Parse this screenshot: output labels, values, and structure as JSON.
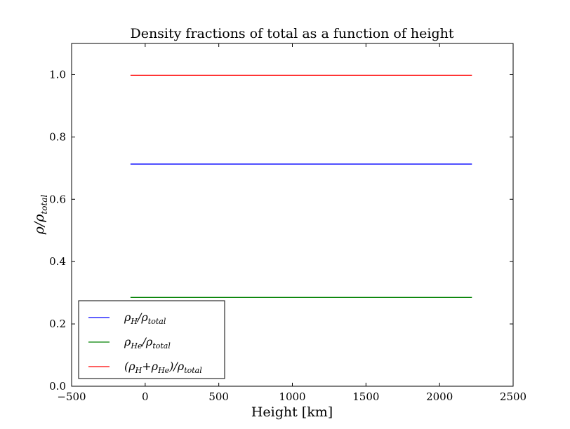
{
  "chart_data": {
    "type": "line",
    "title": "Density fractions of total as a function of height",
    "xlabel": "Height [km]",
    "ylabel": "ρ/ρ_total",
    "xlim": [
      -500,
      2500
    ],
    "ylim": [
      0.0,
      1.1
    ],
    "xticks": [
      -500,
      0,
      500,
      1000,
      1500,
      2000,
      2500
    ],
    "xtick_labels": [
      "−500",
      "0",
      "500",
      "1000",
      "1500",
      "2000",
      "2500"
    ],
    "yticks": [
      0.0,
      0.2,
      0.4,
      0.6,
      0.8,
      1.0
    ],
    "ytick_labels": [
      "0.0",
      "0.2",
      "0.4",
      "0.6",
      "0.8",
      "1.0"
    ],
    "grid": false,
    "legend_position": "lower-left",
    "x": [
      -100,
      2220
    ],
    "series": [
      {
        "name": "ρ_H/ρ_total",
        "color": "#0000ff",
        "values": [
          0.713,
          0.713
        ]
      },
      {
        "name": "ρ_He/ρ_total",
        "color": "#008000",
        "values": [
          0.285,
          0.285
        ]
      },
      {
        "name": "(ρ_H+ρ_He)/ρ_total",
        "color": "#ff0000",
        "values": [
          0.998,
          0.998
        ]
      }
    ],
    "legend": {
      "entries": [
        {
          "base": "ρ",
          "sub": "H",
          "rest": "/ρ",
          "sub2": "total",
          "prefix": ""
        },
        {
          "base": "ρ",
          "sub": "He",
          "rest": "/ρ",
          "sub2": "total",
          "prefix": ""
        },
        {
          "base": "(ρ",
          "sub": "H",
          "mid": "+ρ",
          "subm": "He",
          "rest": ")/ρ",
          "sub2": "total",
          "prefix": ""
        }
      ]
    },
    "ylabel_parts": {
      "base": "ρ/ρ",
      "sub": "total"
    }
  }
}
